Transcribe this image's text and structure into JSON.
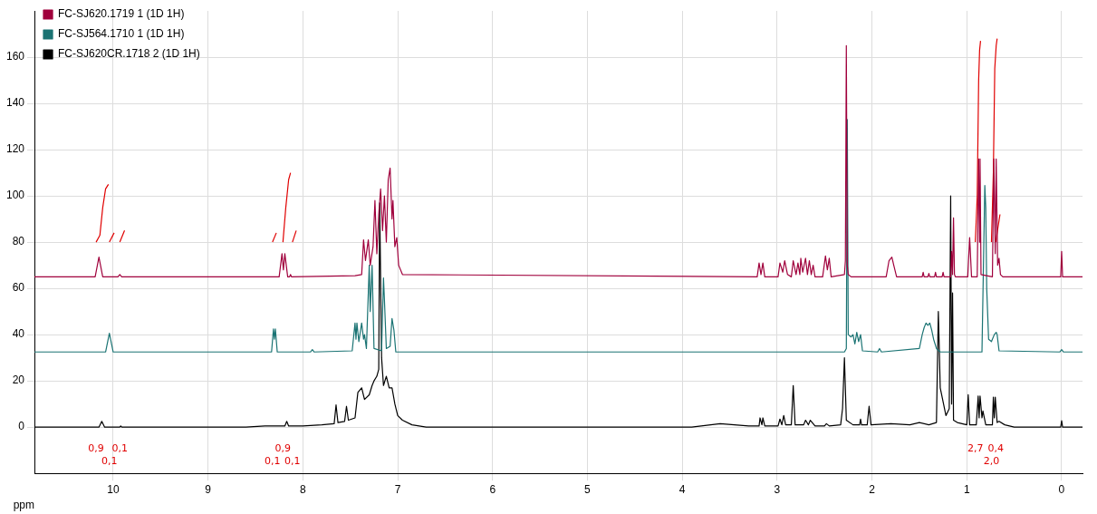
{
  "chart_data": {
    "type": "line",
    "xlabel": "ppm",
    "xlim": [
      10.83,
      -0.22
    ],
    "xticks": [
      10,
      9,
      8,
      7,
      6,
      5,
      4,
      3,
      2,
      1,
      0
    ],
    "ylim": [
      -20,
      180
    ],
    "yticks": [
      0,
      20,
      40,
      60,
      80,
      100,
      120,
      140,
      160
    ],
    "grid": true,
    "legend": "top left",
    "marker": "none",
    "line_style": "solid",
    "series": [
      {
        "name": "FC-SJ620.1719 1 (1D 1H)",
        "color": "#a0003c",
        "x": [
          10.83,
          10.19,
          10.15,
          10.11,
          9.95,
          9.93,
          9.91,
          8.25,
          8.22,
          8.205,
          8.19,
          8.16,
          8.14,
          8.13,
          8.12,
          7.45,
          7.38,
          7.36,
          7.34,
          7.31,
          7.29,
          7.26,
          7.24,
          7.22,
          7.2,
          7.18,
          7.16,
          7.14,
          7.12,
          7.1,
          7.08,
          7.06,
          7.05,
          7.03,
          7.01,
          6.99,
          6.95,
          3.21,
          3.19,
          3.17,
          3.15,
          3.13,
          2.99,
          2.97,
          2.94,
          2.92,
          2.89,
          2.85,
          2.83,
          2.8,
          2.78,
          2.76,
          2.75,
          2.73,
          2.7,
          2.68,
          2.66,
          2.64,
          2.62,
          2.6,
          2.52,
          2.49,
          2.47,
          2.45,
          2.43,
          2.29,
          2.28,
          2.27,
          2.26,
          2.25,
          2.22,
          1.85,
          1.82,
          1.79,
          1.77,
          1.74,
          1.47,
          1.46,
          1.45,
          1.41,
          1.4,
          1.39,
          1.34,
          1.33,
          1.32,
          1.26,
          1.25,
          1.24,
          1.17,
          1.16,
          1.15,
          1.14,
          1.13,
          1.12,
          0.99,
          0.97,
          0.95,
          0.89,
          0.875,
          0.865,
          0.86,
          0.85,
          0.73,
          0.715,
          0.7,
          0.69,
          0.675,
          0.66,
          0.645,
          0.62,
          0.01,
          0.0,
          -0.01,
          -0.22
        ],
        "values": [
          65,
          65,
          73.5,
          65,
          65,
          66,
          65,
          65,
          75,
          68,
          75,
          65,
          65,
          66,
          65,
          65.5,
          66,
          81,
          72,
          81,
          70,
          78,
          98,
          75,
          92,
          103,
          85,
          100,
          80,
          107,
          112,
          90,
          98,
          78,
          82,
          70,
          66,
          65,
          71,
          66,
          71,
          65,
          65,
          71,
          67,
          72,
          66,
          65,
          72,
          66,
          71,
          66,
          73,
          67,
          73,
          66,
          72,
          66,
          70,
          65,
          65,
          74,
          68,
          73,
          65,
          66,
          72,
          165,
          70,
          66,
          65,
          65,
          72,
          73.5,
          70,
          65,
          65,
          67,
          65,
          65,
          66.5,
          65,
          65,
          67,
          65,
          65,
          67,
          65,
          65,
          76,
          66,
          90.5,
          66,
          65,
          65,
          82,
          65,
          65,
          116,
          80,
          116,
          66,
          65,
          116,
          75,
          116,
          70,
          73,
          66,
          65,
          65,
          76,
          65,
          65
        ]
      },
      {
        "name": "FC-SJ564.1710 1 (1D 1H)",
        "color": "#1a7373",
        "x": [
          10.83,
          10.08,
          10.04,
          10.0,
          8.33,
          8.31,
          8.3,
          8.29,
          8.27,
          7.92,
          7.9,
          7.88,
          7.48,
          7.45,
          7.44,
          7.43,
          7.41,
          7.38,
          7.36,
          7.35,
          7.33,
          7.3,
          7.29,
          7.27,
          7.25,
          7.17,
          7.15,
          7.14,
          7.12,
          7.08,
          7.06,
          7.04,
          7.02,
          2.29,
          2.27,
          2.26,
          2.25,
          2.22,
          2.2,
          2.18,
          2.16,
          2.14,
          2.12,
          2.1,
          1.94,
          1.92,
          1.9,
          1.5,
          1.47,
          1.45,
          1.43,
          1.41,
          1.39,
          1.37,
          1.35,
          1.32,
          1.28,
          0.84,
          0.81,
          0.8,
          0.79,
          0.77,
          0.74,
          0.71,
          0.69,
          0.68,
          0.66,
          0.02,
          0.0,
          -0.02,
          -0.22
        ],
        "values": [
          32.5,
          32.5,
          40.6,
          32.5,
          32.5,
          42.5,
          38,
          42.5,
          32.5,
          32.5,
          33.5,
          32.5,
          33,
          45,
          38,
          45,
          37,
          45,
          38,
          40,
          34,
          70,
          50,
          70,
          34,
          33,
          64.5,
          55,
          34,
          35,
          47,
          42,
          32.5,
          32.5,
          34,
          133,
          40,
          39,
          40,
          36,
          41,
          37,
          40,
          33,
          32.5,
          34,
          32.5,
          34,
          40,
          43,
          45,
          44,
          45,
          42,
          38,
          34,
          32.5,
          32.5,
          104.5,
          95,
          60,
          38,
          37,
          40,
          41,
          40,
          33,
          32.5,
          33.5,
          32.5,
          32.5
        ]
      },
      {
        "name": "FC-SJ620CR.1718 2 (1D 1H)",
        "color": "#000000",
        "x": [
          10.83,
          10.15,
          10.12,
          10.09,
          9.93,
          9.92,
          9.91,
          8.6,
          8.4,
          8.19,
          8.17,
          8.15,
          8.0,
          7.8,
          7.67,
          7.65,
          7.63,
          7.56,
          7.54,
          7.52,
          7.45,
          7.42,
          7.38,
          7.35,
          7.3,
          7.27,
          7.25,
          7.22,
          7.2,
          7.19,
          7.17,
          7.15,
          7.12,
          7.09,
          7.06,
          7.03,
          7.0,
          6.95,
          6.85,
          6.7,
          3.9,
          3.6,
          3.3,
          3.19,
          3.18,
          3.16,
          3.15,
          3.13,
          2.99,
          2.97,
          2.95,
          2.93,
          2.91,
          2.85,
          2.83,
          2.81,
          2.72,
          2.7,
          2.67,
          2.65,
          2.6,
          2.5,
          2.48,
          2.45,
          2.33,
          2.31,
          2.29,
          2.27,
          2.2,
          2.13,
          2.12,
          2.11,
          2.05,
          2.03,
          2.01,
          1.8,
          1.6,
          1.5,
          1.4,
          1.32,
          1.3,
          1.28,
          1.22,
          1.185,
          1.17,
          1.16,
          1.15,
          1.14,
          1.1,
          1.0,
          0.985,
          0.97,
          0.9,
          0.88,
          0.87,
          0.86,
          0.84,
          0.83,
          0.8,
          0.73,
          0.72,
          0.71,
          0.7,
          0.68,
          0.66,
          0.6,
          0.5,
          0.01,
          0.0,
          -0.01,
          -0.22
        ],
        "values": [
          0,
          0,
          2.5,
          0,
          0,
          0.5,
          0,
          0,
          0.5,
          0.5,
          2.5,
          0.5,
          0.5,
          1,
          1.5,
          9.6,
          2,
          2.5,
          9,
          3,
          4,
          15,
          17,
          12,
          14,
          18,
          20,
          22,
          25,
          97,
          30,
          18,
          22,
          17,
          17,
          10,
          5,
          3,
          1,
          0,
          0,
          1.5,
          0.5,
          0.5,
          4,
          1,
          4,
          0.5,
          0.5,
          3.5,
          1,
          5,
          1,
          1,
          18,
          1,
          1,
          3,
          1,
          3,
          0.5,
          0.5,
          1.5,
          0.5,
          1,
          8,
          30,
          3,
          1,
          1,
          3.5,
          1,
          1,
          9,
          1,
          1.5,
          1,
          2,
          1,
          2,
          50,
          17,
          5,
          8,
          100,
          10,
          58,
          3,
          2,
          1,
          14,
          1,
          1,
          13.5,
          4,
          13.5,
          4,
          7,
          1,
          1,
          13,
          4,
          13,
          2,
          2.5,
          1,
          0,
          0,
          2.8,
          0,
          0
        ]
      },
      {
        "color": "#e00000",
        "x": [
          10.18,
          10.14,
          10.11,
          10.08,
          10.05
        ],
        "values": [
          80,
          83,
          95,
          103,
          105
        ]
      },
      {
        "color": "#e00000",
        "x": [
          10.04,
          9.99
        ],
        "values": [
          80,
          84
        ]
      },
      {
        "color": "#e00000",
        "x": [
          9.93,
          9.88
        ],
        "values": [
          80,
          85
        ]
      },
      {
        "color": "#e00000",
        "x": [
          8.32,
          8.28
        ],
        "values": [
          80,
          84
        ]
      },
      {
        "color": "#e00000",
        "x": [
          8.21,
          8.18,
          8.15,
          8.13
        ],
        "values": [
          80,
          95,
          107,
          110
        ]
      },
      {
        "color": "#e00000",
        "x": [
          8.11,
          8.07
        ],
        "values": [
          80,
          85
        ]
      },
      {
        "color": "#e00000",
        "x": [
          0.91,
          0.89,
          0.875,
          0.865,
          0.855
        ],
        "values": [
          80,
          100,
          150,
          163,
          167
        ]
      },
      {
        "color": "#e00000",
        "x": [
          0.74,
          0.72,
          0.705,
          0.69,
          0.68
        ],
        "values": [
          80,
          110,
          155,
          165,
          168
        ]
      },
      {
        "color": "#e00000",
        "x": [
          0.695,
          0.65
        ],
        "values": [
          80,
          92
        ]
      }
    ],
    "annotations": [
      "0,9",
      "0,1",
      "0,1",
      "0,1",
      "0,9",
      "0,1",
      "2,7",
      "2,0",
      "0,4"
    ]
  }
}
